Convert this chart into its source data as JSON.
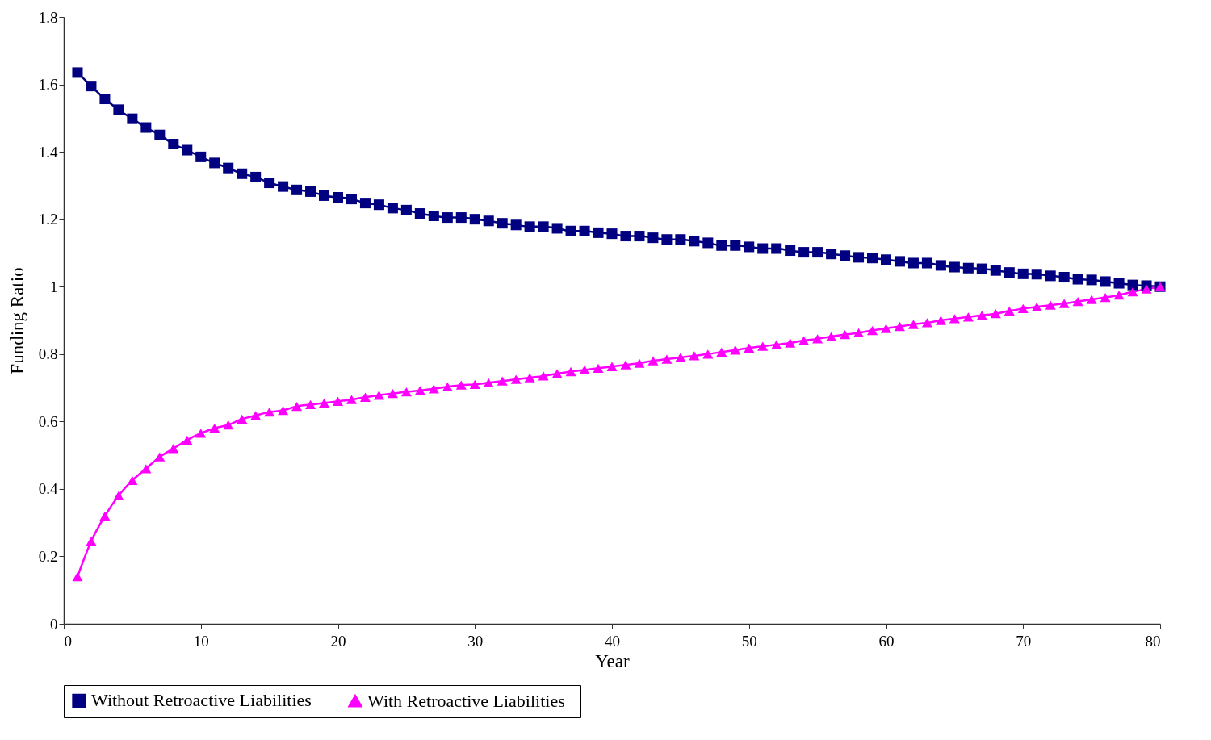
{
  "chart_data": {
    "type": "line",
    "xlabel": "Year",
    "ylabel": "Funding Ratio",
    "x": [
      1,
      2,
      3,
      4,
      5,
      6,
      7,
      8,
      9,
      10,
      11,
      12,
      13,
      14,
      15,
      16,
      17,
      18,
      19,
      20,
      21,
      22,
      23,
      24,
      25,
      26,
      27,
      28,
      29,
      30,
      31,
      32,
      33,
      34,
      35,
      36,
      37,
      38,
      39,
      40,
      41,
      42,
      43,
      44,
      45,
      46,
      47,
      48,
      49,
      50,
      51,
      52,
      53,
      54,
      55,
      56,
      57,
      58,
      59,
      60,
      61,
      62,
      63,
      64,
      65,
      66,
      67,
      68,
      69,
      70,
      71,
      72,
      73,
      74,
      75,
      76,
      77,
      78,
      79,
      80
    ],
    "series": [
      {
        "name": "Without  Retroactive  Liabilities",
        "color": "#000080",
        "marker": "square",
        "values": [
          1.635,
          1.595,
          1.557,
          1.525,
          1.498,
          1.472,
          1.45,
          1.423,
          1.405,
          1.385,
          1.367,
          1.352,
          1.335,
          1.325,
          1.308,
          1.297,
          1.287,
          1.282,
          1.27,
          1.265,
          1.26,
          1.248,
          1.243,
          1.233,
          1.227,
          1.217,
          1.21,
          1.205,
          1.205,
          1.2,
          1.195,
          1.188,
          1.183,
          1.178,
          1.178,
          1.173,
          1.165,
          1.165,
          1.16,
          1.157,
          1.15,
          1.15,
          1.145,
          1.14,
          1.14,
          1.135,
          1.13,
          1.122,
          1.122,
          1.118,
          1.113,
          1.113,
          1.107,
          1.102,
          1.102,
          1.097,
          1.092,
          1.087,
          1.085,
          1.08,
          1.075,
          1.07,
          1.07,
          1.063,
          1.058,
          1.055,
          1.053,
          1.048,
          1.042,
          1.038,
          1.037,
          1.032,
          1.028,
          1.022,
          1.02,
          1.015,
          1.01,
          1.005,
          1.003,
          1.0
        ]
      },
      {
        "name": "With  Retroactive  Liabilities",
        "color": "#ff00ff",
        "marker": "triangle",
        "values": [
          0.14,
          0.245,
          0.32,
          0.38,
          0.425,
          0.46,
          0.495,
          0.52,
          0.545,
          0.565,
          0.58,
          0.59,
          0.607,
          0.618,
          0.628,
          0.633,
          0.645,
          0.65,
          0.655,
          0.66,
          0.665,
          0.672,
          0.678,
          0.683,
          0.688,
          0.692,
          0.697,
          0.703,
          0.708,
          0.71,
          0.715,
          0.72,
          0.725,
          0.73,
          0.735,
          0.742,
          0.748,
          0.753,
          0.758,
          0.763,
          0.768,
          0.773,
          0.78,
          0.785,
          0.79,
          0.795,
          0.8,
          0.806,
          0.812,
          0.818,
          0.823,
          0.828,
          0.833,
          0.84,
          0.845,
          0.852,
          0.858,
          0.863,
          0.87,
          0.876,
          0.882,
          0.888,
          0.893,
          0.9,
          0.905,
          0.91,
          0.915,
          0.92,
          0.928,
          0.935,
          0.94,
          0.945,
          0.95,
          0.956,
          0.962,
          0.968,
          0.975,
          0.985,
          0.993,
          1.0
        ]
      }
    ],
    "xlim": [
      0,
      80
    ],
    "xticks": [
      0,
      10,
      20,
      30,
      40,
      50,
      60,
      70,
      80
    ],
    "ylim": [
      0,
      1.8
    ],
    "yticks": [
      0,
      0.2,
      0.4,
      0.6,
      0.8,
      1,
      1.2,
      1.4,
      1.6,
      1.8
    ],
    "grid": false,
    "legend": "bottom"
  }
}
